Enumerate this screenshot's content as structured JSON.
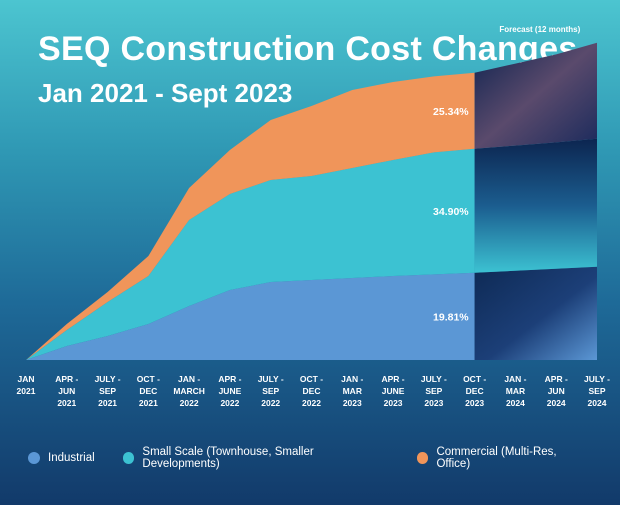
{
  "header": {
    "title": "SEQ Construction Cost Changes",
    "subtitle": "Jan 2021 - Sept 2023"
  },
  "chart_data": {
    "type": "area",
    "stacked": true,
    "x": [
      [
        "JAN",
        "2021"
      ],
      [
        "APR -",
        "JUN",
        "2021"
      ],
      [
        "JULY -",
        "SEP",
        "2021"
      ],
      [
        "OCT -",
        "DEC",
        "2021"
      ],
      [
        "JAN -",
        "MARCH",
        "2022"
      ],
      [
        "APR -",
        "JUNE",
        "2022"
      ],
      [
        "JULY -",
        "SEP",
        "2022"
      ],
      [
        "OCT -",
        "DEC",
        "2022"
      ],
      [
        "JAN -",
        "MAR",
        "2023"
      ],
      [
        "APR -",
        "JUNE",
        "2023"
      ],
      [
        "JULY -",
        "SEP",
        "2023"
      ],
      [
        "OCT -",
        "DEC",
        "2023"
      ],
      [
        "JAN -",
        "MAR",
        "2024"
      ],
      [
        "APR -",
        "JUN",
        "2024"
      ],
      [
        "JULY -",
        "SEP",
        "2024"
      ]
    ],
    "forecast_start_index": 11,
    "forecast_label": "Forecast (12 months)",
    "series": [
      {
        "name": "Industrial",
        "color": "#5b97d5",
        "values": [
          0,
          3.5,
          6.0,
          9.0,
          13.5,
          17.5,
          19.5,
          20.0,
          20.5,
          21.0,
          21.4,
          21.8,
          22.3,
          22.8,
          23.3
        ],
        "label": "19.81%"
      },
      {
        "name": "Small Scale (Townhouse, Smaller Developments)",
        "color": "#3cc2d2",
        "values": [
          0,
          4.0,
          8.5,
          12.0,
          21.5,
          24.0,
          25.5,
          26.0,
          27.5,
          29.0,
          30.5,
          31.0,
          31.3,
          31.6,
          32.0
        ],
        "label": "34.90%"
      },
      {
        "name": "Commercial (Multi-Res, Office)",
        "color": "#f0955a",
        "values": [
          0,
          1.5,
          2.5,
          5.0,
          8.0,
          11.0,
          15.0,
          17.5,
          19.5,
          19.5,
          19.0,
          19.0,
          20.5,
          22.0,
          24.0
        ],
        "label": "25.34%"
      }
    ],
    "ylim": [
      0,
      80
    ],
    "legend_position": "bottom"
  }
}
